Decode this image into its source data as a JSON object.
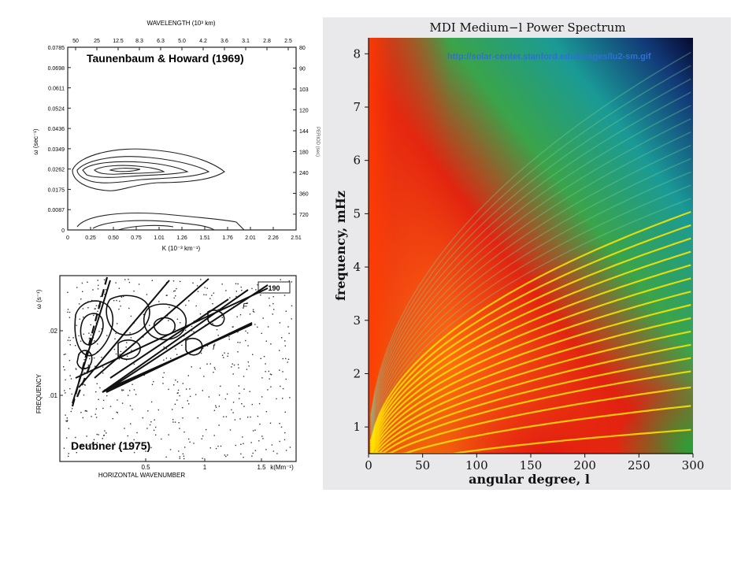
{
  "captions": {
    "top_left": "Taunenbaum & Howard (1969)",
    "bottom_left": "Deubner (1975)",
    "url": "http://solar-center.stanford.edu/images/lu2-sm.gif"
  },
  "chart_data": [
    {
      "type": "contour",
      "title": "",
      "top_axis_label": "WAVELENGTH (10³ km)",
      "top_ticks": [
        "50",
        "25",
        "12.5",
        "8.3",
        "6.3",
        "5.0",
        "4.2",
        "3.6",
        "3.1",
        "2.8",
        "2.5"
      ],
      "xlabel": "K (10⁻³ km⁻¹)",
      "x_ticks": [
        "0",
        "0.25",
        "0.50",
        "0.75",
        "1.01",
        "1.26",
        "1.51",
        "1.76",
        "2.01",
        "2.26",
        "2.51"
      ],
      "xlim": [
        0,
        2.51
      ],
      "ylabel": "ω (sec⁻¹)",
      "y_ticks": [
        "0",
        "0.0087",
        "0.0175",
        "0.0262",
        "0.0349",
        "0.0436",
        "0.0524",
        "0.0611",
        "0.0698",
        "0.0785"
      ],
      "ylim": [
        0,
        0.0785
      ],
      "right_ticks": [
        "720",
        "360",
        "240",
        "180",
        "144",
        "120",
        "103",
        "90",
        "80"
      ],
      "right_label": "PERIOD (sec)"
    },
    {
      "type": "contour",
      "title": "",
      "panel_label": "190",
      "xlabel": "HORIZONTAL WAVENUMBER",
      "x_unit": "k(Mm⁻¹)",
      "x_ticks": [
        "0.5",
        "1",
        "1.5"
      ],
      "ylabel": "FREQUENCY",
      "y_unit": "ω (s⁻¹)",
      "y_ticks": [
        ".01",
        ".02"
      ],
      "ridge_labels": [
        "F",
        "f"
      ]
    },
    {
      "type": "heatmap",
      "title": "MDI Medium−l Power Spectrum",
      "xlabel": "angular degree, l",
      "ylabel": "frequency, mHz",
      "x_ticks": [
        0,
        50,
        100,
        150,
        200,
        250,
        300
      ],
      "y_ticks": [
        1,
        2,
        3,
        4,
        5,
        6,
        7,
        8
      ],
      "xlim": [
        0,
        300
      ],
      "ylim": [
        0.5,
        8.3
      ],
      "ridges_nu_at_l300": [
        0.95,
        1.4,
        1.75,
        2.05,
        2.3,
        2.55,
        2.8,
        3.05,
        3.3,
        3.55,
        3.8,
        4.05,
        4.3,
        4.55,
        4.8,
        5.05,
        5.3,
        5.55,
        5.8,
        6.05,
        6.3,
        6.55,
        6.8,
        7.05,
        7.3,
        7.55,
        7.8,
        8.05
      ],
      "colors": {
        "background_left": "#ffdd00",
        "mid": "#e82a10",
        "green": "#1fa83a",
        "teal": "#1a9a96",
        "dark": "#0a1040",
        "ridge": "#ffe600"
      }
    }
  ]
}
